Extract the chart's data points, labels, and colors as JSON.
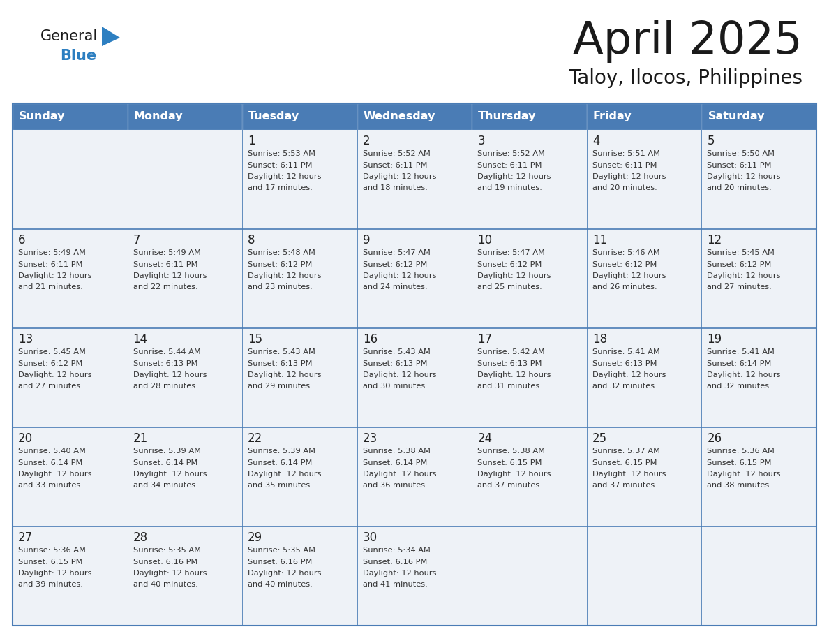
{
  "title": "April 2025",
  "subtitle": "Taloy, Ilocos, Philippines",
  "days_of_week": [
    "Sunday",
    "Monday",
    "Tuesday",
    "Wednesday",
    "Thursday",
    "Friday",
    "Saturday"
  ],
  "header_bg_color": "#4a7cb5",
  "header_text_color": "#ffffff",
  "cell_bg_color": "#eef2f7",
  "border_color": "#4a7cb5",
  "grid_line_color": "#4a7cb5",
  "day_number_color": "#222222",
  "text_color": "#333333",
  "logo_blue_color": "#2d7fc1",
  "logo_black_color": "#1a1a1a",
  "title_color": "#1a1a1a",
  "calendar_data": [
    {
      "week": 0,
      "day": 2,
      "date": 1,
      "sunrise": "5:53 AM",
      "sunset": "6:11 PM",
      "daylight_hours": 12,
      "daylight_minutes": 17
    },
    {
      "week": 0,
      "day": 3,
      "date": 2,
      "sunrise": "5:52 AM",
      "sunset": "6:11 PM",
      "daylight_hours": 12,
      "daylight_minutes": 18
    },
    {
      "week": 0,
      "day": 4,
      "date": 3,
      "sunrise": "5:52 AM",
      "sunset": "6:11 PM",
      "daylight_hours": 12,
      "daylight_minutes": 19
    },
    {
      "week": 0,
      "day": 5,
      "date": 4,
      "sunrise": "5:51 AM",
      "sunset": "6:11 PM",
      "daylight_hours": 12,
      "daylight_minutes": 20
    },
    {
      "week": 0,
      "day": 6,
      "date": 5,
      "sunrise": "5:50 AM",
      "sunset": "6:11 PM",
      "daylight_hours": 12,
      "daylight_minutes": 20
    },
    {
      "week": 1,
      "day": 0,
      "date": 6,
      "sunrise": "5:49 AM",
      "sunset": "6:11 PM",
      "daylight_hours": 12,
      "daylight_minutes": 21
    },
    {
      "week": 1,
      "day": 1,
      "date": 7,
      "sunrise": "5:49 AM",
      "sunset": "6:11 PM",
      "daylight_hours": 12,
      "daylight_minutes": 22
    },
    {
      "week": 1,
      "day": 2,
      "date": 8,
      "sunrise": "5:48 AM",
      "sunset": "6:12 PM",
      "daylight_hours": 12,
      "daylight_minutes": 23
    },
    {
      "week": 1,
      "day": 3,
      "date": 9,
      "sunrise": "5:47 AM",
      "sunset": "6:12 PM",
      "daylight_hours": 12,
      "daylight_minutes": 24
    },
    {
      "week": 1,
      "day": 4,
      "date": 10,
      "sunrise": "5:47 AM",
      "sunset": "6:12 PM",
      "daylight_hours": 12,
      "daylight_minutes": 25
    },
    {
      "week": 1,
      "day": 5,
      "date": 11,
      "sunrise": "5:46 AM",
      "sunset": "6:12 PM",
      "daylight_hours": 12,
      "daylight_minutes": 26
    },
    {
      "week": 1,
      "day": 6,
      "date": 12,
      "sunrise": "5:45 AM",
      "sunset": "6:12 PM",
      "daylight_hours": 12,
      "daylight_minutes": 27
    },
    {
      "week": 2,
      "day": 0,
      "date": 13,
      "sunrise": "5:45 AM",
      "sunset": "6:12 PM",
      "daylight_hours": 12,
      "daylight_minutes": 27
    },
    {
      "week": 2,
      "day": 1,
      "date": 14,
      "sunrise": "5:44 AM",
      "sunset": "6:13 PM",
      "daylight_hours": 12,
      "daylight_minutes": 28
    },
    {
      "week": 2,
      "day": 2,
      "date": 15,
      "sunrise": "5:43 AM",
      "sunset": "6:13 PM",
      "daylight_hours": 12,
      "daylight_minutes": 29
    },
    {
      "week": 2,
      "day": 3,
      "date": 16,
      "sunrise": "5:43 AM",
      "sunset": "6:13 PM",
      "daylight_hours": 12,
      "daylight_minutes": 30
    },
    {
      "week": 2,
      "day": 4,
      "date": 17,
      "sunrise": "5:42 AM",
      "sunset": "6:13 PM",
      "daylight_hours": 12,
      "daylight_minutes": 31
    },
    {
      "week": 2,
      "day": 5,
      "date": 18,
      "sunrise": "5:41 AM",
      "sunset": "6:13 PM",
      "daylight_hours": 12,
      "daylight_minutes": 32
    },
    {
      "week": 2,
      "day": 6,
      "date": 19,
      "sunrise": "5:41 AM",
      "sunset": "6:14 PM",
      "daylight_hours": 12,
      "daylight_minutes": 32
    },
    {
      "week": 3,
      "day": 0,
      "date": 20,
      "sunrise": "5:40 AM",
      "sunset": "6:14 PM",
      "daylight_hours": 12,
      "daylight_minutes": 33
    },
    {
      "week": 3,
      "day": 1,
      "date": 21,
      "sunrise": "5:39 AM",
      "sunset": "6:14 PM",
      "daylight_hours": 12,
      "daylight_minutes": 34
    },
    {
      "week": 3,
      "day": 2,
      "date": 22,
      "sunrise": "5:39 AM",
      "sunset": "6:14 PM",
      "daylight_hours": 12,
      "daylight_minutes": 35
    },
    {
      "week": 3,
      "day": 3,
      "date": 23,
      "sunrise": "5:38 AM",
      "sunset": "6:14 PM",
      "daylight_hours": 12,
      "daylight_minutes": 36
    },
    {
      "week": 3,
      "day": 4,
      "date": 24,
      "sunrise": "5:38 AM",
      "sunset": "6:15 PM",
      "daylight_hours": 12,
      "daylight_minutes": 37
    },
    {
      "week": 3,
      "day": 5,
      "date": 25,
      "sunrise": "5:37 AM",
      "sunset": "6:15 PM",
      "daylight_hours": 12,
      "daylight_minutes": 37
    },
    {
      "week": 3,
      "day": 6,
      "date": 26,
      "sunrise": "5:36 AM",
      "sunset": "6:15 PM",
      "daylight_hours": 12,
      "daylight_minutes": 38
    },
    {
      "week": 4,
      "day": 0,
      "date": 27,
      "sunrise": "5:36 AM",
      "sunset": "6:15 PM",
      "daylight_hours": 12,
      "daylight_minutes": 39
    },
    {
      "week": 4,
      "day": 1,
      "date": 28,
      "sunrise": "5:35 AM",
      "sunset": "6:16 PM",
      "daylight_hours": 12,
      "daylight_minutes": 40
    },
    {
      "week": 4,
      "day": 2,
      "date": 29,
      "sunrise": "5:35 AM",
      "sunset": "6:16 PM",
      "daylight_hours": 12,
      "daylight_minutes": 40
    },
    {
      "week": 4,
      "day": 3,
      "date": 30,
      "sunrise": "5:34 AM",
      "sunset": "6:16 PM",
      "daylight_hours": 12,
      "daylight_minutes": 41
    }
  ]
}
